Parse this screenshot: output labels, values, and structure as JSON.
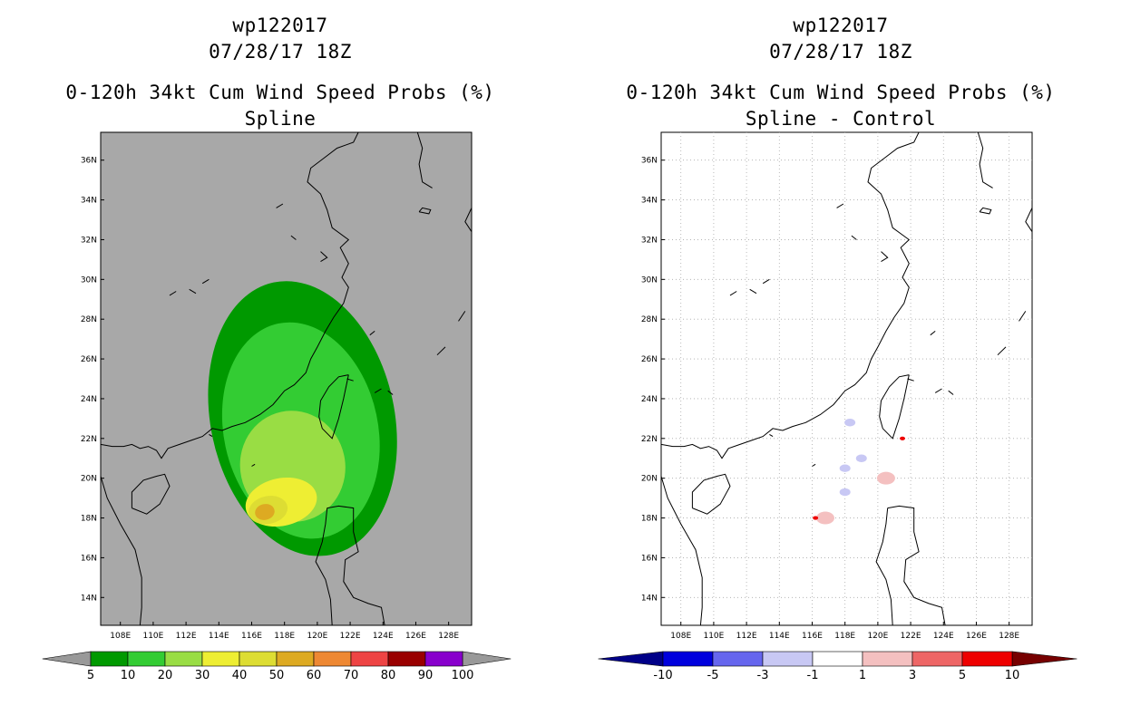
{
  "colors": {
    "land_bg": "#a8a8a8",
    "ocean_bg": "#ffffff",
    "coast": "#000000",
    "grid": "#aaaaaa"
  },
  "left": {
    "title1": "wp122017",
    "title2": "07/28/17 18Z",
    "title3": "0-120h 34kt Cum Wind Speed Probs (%)",
    "title4": "Spline"
  },
  "right": {
    "title1": "wp122017",
    "title2": "07/28/17 18Z",
    "title3": "0-120h 34kt Cum Wind Speed Probs (%)",
    "title4": "Spline - Control"
  },
  "axes": {
    "lon_ticks": [
      "108E",
      "110E",
      "112E",
      "114E",
      "116E",
      "118E",
      "120E",
      "122E",
      "124E",
      "126E",
      "128E"
    ],
    "lat_ticks": [
      "36N",
      "34N",
      "32N",
      "30N",
      "28N",
      "26N",
      "24N",
      "22N",
      "20N",
      "18N",
      "16N",
      "14N"
    ]
  },
  "colorbar_left": {
    "labels": [
      "5",
      "10",
      "20",
      "30",
      "40",
      "50",
      "60",
      "70",
      "80",
      "90",
      "100"
    ],
    "colors": [
      "#009900",
      "#33cc33",
      "#99dd44",
      "#eeee33",
      "#dddd33",
      "#ddaa22",
      "#ee8833",
      "#ee4444",
      "#990000",
      "#8800cc"
    ],
    "under_color": "#999999",
    "over_color": "#999999"
  },
  "colorbar_right": {
    "labels": [
      "-10",
      "-5",
      "-3",
      "-1",
      "1",
      "3",
      "5",
      "10"
    ],
    "colors": [
      "#0000dd",
      "#6666ee",
      "#c8c8f4",
      "#ffffff",
      "#f4c0c0",
      "#ee6666",
      "#ee0000"
    ],
    "under_color": "#000088",
    "over_color": "#770000"
  },
  "chart_data": [
    {
      "type": "heatmap",
      "title": "0-120h 34kt Cum Wind Speed Probs (%) — Spline",
      "xlim": [
        106.8,
        129.4
      ],
      "ylim": [
        12.6,
        37.4
      ],
      "units": "%",
      "levels": [
        5,
        10,
        20,
        30,
        40,
        50,
        60,
        70,
        80,
        90,
        100
      ],
      "regions": [
        {
          "level": "5-10",
          "center": [
            119.1,
            23.0
          ],
          "radius_lon": 5.6,
          "radius_lat": 7.0
        },
        {
          "level": "10-20",
          "center": [
            119.0,
            22.4
          ],
          "radius_lon": 4.7,
          "radius_lat": 5.5
        },
        {
          "level": "20-30",
          "center": [
            118.5,
            20.6
          ],
          "radius_lon": 3.2,
          "radius_lat": 2.8
        },
        {
          "level": "30-40",
          "center": [
            117.8,
            18.8
          ],
          "radius_lon": 2.2,
          "radius_lat": 1.2
        },
        {
          "level": "40-50",
          "center": [
            117.0,
            18.4
          ],
          "radius_lon": 1.2,
          "radius_lat": 0.7
        },
        {
          "level": "50-60",
          "center": [
            116.8,
            18.3
          ],
          "radius_lon": 0.6,
          "radius_lat": 0.4
        }
      ]
    },
    {
      "type": "heatmap",
      "title": "0-120h 34kt Cum Wind Speed Probs (%) — Spline - Control",
      "xlim": [
        106.8,
        129.4
      ],
      "ylim": [
        12.6,
        37.4
      ],
      "units": "%",
      "levels": [
        -10,
        -5,
        -3,
        -1,
        1,
        3,
        5,
        10
      ],
      "regions": [
        {
          "level": "-3 to -1",
          "center": [
            118.3,
            22.8
          ]
        },
        {
          "level": "-3 to -1",
          "center": [
            119.0,
            21.0
          ]
        },
        {
          "level": "-3 to -1",
          "center": [
            118.0,
            20.5
          ]
        },
        {
          "level": "-3 to -1",
          "center": [
            118.0,
            19.3
          ]
        },
        {
          "level": "1 to 3",
          "center": [
            116.8,
            18.0
          ]
        },
        {
          "level": "5 to 10",
          "center": [
            116.2,
            18.0
          ]
        },
        {
          "level": "1 to 3",
          "center": [
            120.5,
            20.0
          ]
        },
        {
          "level": "5 to 10",
          "center": [
            121.5,
            22.0
          ]
        }
      ]
    }
  ]
}
